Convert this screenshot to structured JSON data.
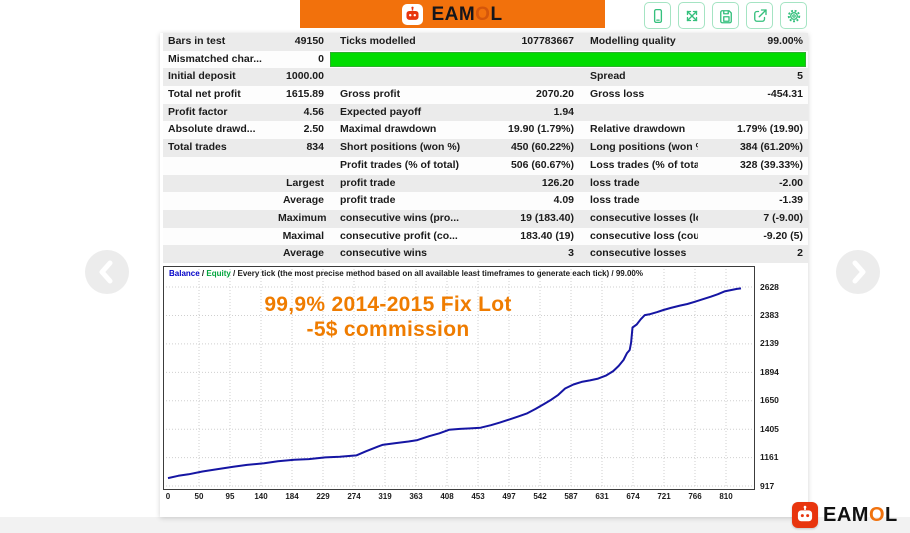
{
  "colors": {
    "banner_orange": "#f2710c",
    "modelling_bar_green": "#00dc00",
    "toolbar_icon_green": "#35c07d",
    "balance_line_blue": "#1515a3",
    "annotation_orange": "#ef7c00",
    "grid_gray": "#cfcfcf",
    "logo_red": "#e8350e"
  },
  "brand": {
    "pre": "EAM",
    "o": "O",
    "post": "L"
  },
  "toolbar": {
    "buttons": [
      "mobile",
      "expand",
      "save",
      "share",
      "settings"
    ]
  },
  "nav": {
    "prev": "previous",
    "next": "next"
  },
  "stats_table": {
    "rows": [
      {
        "c1l": "Bars in test",
        "c1v": "49150",
        "c2l": "Ticks modelled",
        "c2v": "107783667",
        "c3l": "Modelling quality",
        "c3v": "99.00%",
        "bar": false,
        "shade": "gray"
      },
      {
        "c1l": "Mismatched char...",
        "c1v": "0",
        "c2l": "",
        "c2v": "",
        "c3l": "",
        "c3v": "",
        "bar": true,
        "shade": "white"
      },
      {
        "c1l": "Initial deposit",
        "c1v": "1000.00",
        "c2l": "",
        "c2v": "",
        "c3l": "Spread",
        "c3v": "5",
        "bar": false,
        "shade": "gray"
      },
      {
        "c1l": "Total net profit",
        "c1v": "1615.89",
        "c2l": "Gross profit",
        "c2v": "2070.20",
        "c3l": "Gross loss",
        "c3v": "-454.31",
        "bar": false,
        "shade": "white"
      },
      {
        "c1l": "Profit factor",
        "c1v": "4.56",
        "c2l": "Expected payoff",
        "c2v": "1.94",
        "c3l": "",
        "c3v": "",
        "bar": false,
        "shade": "gray"
      },
      {
        "c1l": "Absolute drawd...",
        "c1v": "2.50",
        "c2l": "Maximal drawdown",
        "c2v": "19.90 (1.79%)",
        "c3l": "Relative drawdown",
        "c3v": "1.79% (19.90)",
        "bar": false,
        "shade": "white"
      },
      {
        "c1l": "Total trades",
        "c1v": "834",
        "c2l": "Short positions (won %)",
        "c2v": "450 (60.22%)",
        "c3l": "Long positions (won %)",
        "c3v": "384 (61.20%)",
        "bar": false,
        "shade": "gray"
      },
      {
        "c1l": "",
        "c1v": "",
        "c2l": "Profit trades (% of total)",
        "c2v": "506 (60.67%)",
        "c3l": "Loss trades (% of total)",
        "c3v": "328 (39.33%)",
        "bar": false,
        "shade": "white"
      },
      {
        "c1l": "",
        "c1v": "Largest",
        "c2l": "profit trade",
        "c2v": "126.20",
        "c3l": "loss trade",
        "c3v": "-2.00",
        "bar": false,
        "shade": "gray"
      },
      {
        "c1l": "",
        "c1v": "Average",
        "c2l": "profit trade",
        "c2v": "4.09",
        "c3l": "loss trade",
        "c3v": "-1.39",
        "bar": false,
        "shade": "white"
      },
      {
        "c1l": "",
        "c1v": "Maximum",
        "c2l": "consecutive wins (pro...",
        "c2v": "19 (183.40)",
        "c3l": "consecutive losses (lo...",
        "c3v": "7 (-9.00)",
        "bar": false,
        "shade": "gray"
      },
      {
        "c1l": "",
        "c1v": "Maximal",
        "c2l": "consecutive profit (co...",
        "c2v": "183.40 (19)",
        "c3l": "consecutive loss (cou...",
        "c3v": "-9.20 (5)",
        "bar": false,
        "shade": "white"
      },
      {
        "c1l": "",
        "c1v": "Average",
        "c2l": "consecutive wins",
        "c2v": "3",
        "c3l": "consecutive losses",
        "c3v": "2",
        "bar": false,
        "shade": "gray"
      }
    ]
  },
  "chart_data": {
    "type": "line",
    "header": {
      "balance": "Balance",
      "sep": " / ",
      "equity": "Equity",
      "rest": " / Every tick (the most precise method based on all available least timeframes to generate each tick) / 99.00%"
    },
    "annotation_line1": "99,9% 2014-2015 Fix Lot",
    "annotation_line2": "-5$ commission",
    "xlabel": "",
    "ylabel": "",
    "x_ticks": [
      0,
      50,
      95,
      140,
      184,
      229,
      274,
      319,
      363,
      408,
      453,
      497,
      542,
      587,
      631,
      674,
      721,
      766,
      810
    ],
    "y_ticks": [
      2628,
      2383,
      2139,
      1894,
      1650,
      1405,
      1161,
      917
    ],
    "xlim": [
      0,
      850
    ],
    "ylim": [
      917,
      2628
    ],
    "grid": true,
    "series": [
      {
        "name": "Balance",
        "color": "#1515a3",
        "points": [
          [
            0,
            985
          ],
          [
            15,
            1005
          ],
          [
            30,
            1018
          ],
          [
            50,
            1042
          ],
          [
            70,
            1060
          ],
          [
            95,
            1082
          ],
          [
            115,
            1098
          ],
          [
            140,
            1112
          ],
          [
            160,
            1130
          ],
          [
            184,
            1142
          ],
          [
            205,
            1148
          ],
          [
            229,
            1163
          ],
          [
            250,
            1168
          ],
          [
            274,
            1180
          ],
          [
            288,
            1215
          ],
          [
            305,
            1255
          ],
          [
            312,
            1270
          ],
          [
            330,
            1285
          ],
          [
            350,
            1300
          ],
          [
            363,
            1312
          ],
          [
            380,
            1345
          ],
          [
            395,
            1370
          ],
          [
            409,
            1400
          ],
          [
            425,
            1408
          ],
          [
            440,
            1412
          ],
          [
            455,
            1418
          ],
          [
            470,
            1440
          ],
          [
            483,
            1462
          ],
          [
            497,
            1490
          ],
          [
            510,
            1515
          ],
          [
            523,
            1542
          ],
          [
            535,
            1580
          ],
          [
            548,
            1625
          ],
          [
            558,
            1660
          ],
          [
            568,
            1700
          ],
          [
            578,
            1755
          ],
          [
            590,
            1790
          ],
          [
            602,
            1812
          ],
          [
            614,
            1825
          ],
          [
            626,
            1840
          ],
          [
            638,
            1868
          ],
          [
            648,
            1905
          ],
          [
            656,
            1950
          ],
          [
            663,
            2000
          ],
          [
            668,
            2060
          ],
          [
            672,
            2086
          ],
          [
            674,
            2150
          ],
          [
            676,
            2280
          ],
          [
            682,
            2305
          ],
          [
            688,
            2350
          ],
          [
            694,
            2386
          ],
          [
            702,
            2395
          ],
          [
            712,
            2412
          ],
          [
            721,
            2430
          ],
          [
            732,
            2448
          ],
          [
            745,
            2468
          ],
          [
            756,
            2482
          ],
          [
            766,
            2500
          ],
          [
            778,
            2522
          ],
          [
            790,
            2545
          ],
          [
            800,
            2565
          ],
          [
            810,
            2590
          ],
          [
            820,
            2602
          ],
          [
            828,
            2612
          ],
          [
            834,
            2616
          ]
        ]
      }
    ]
  }
}
